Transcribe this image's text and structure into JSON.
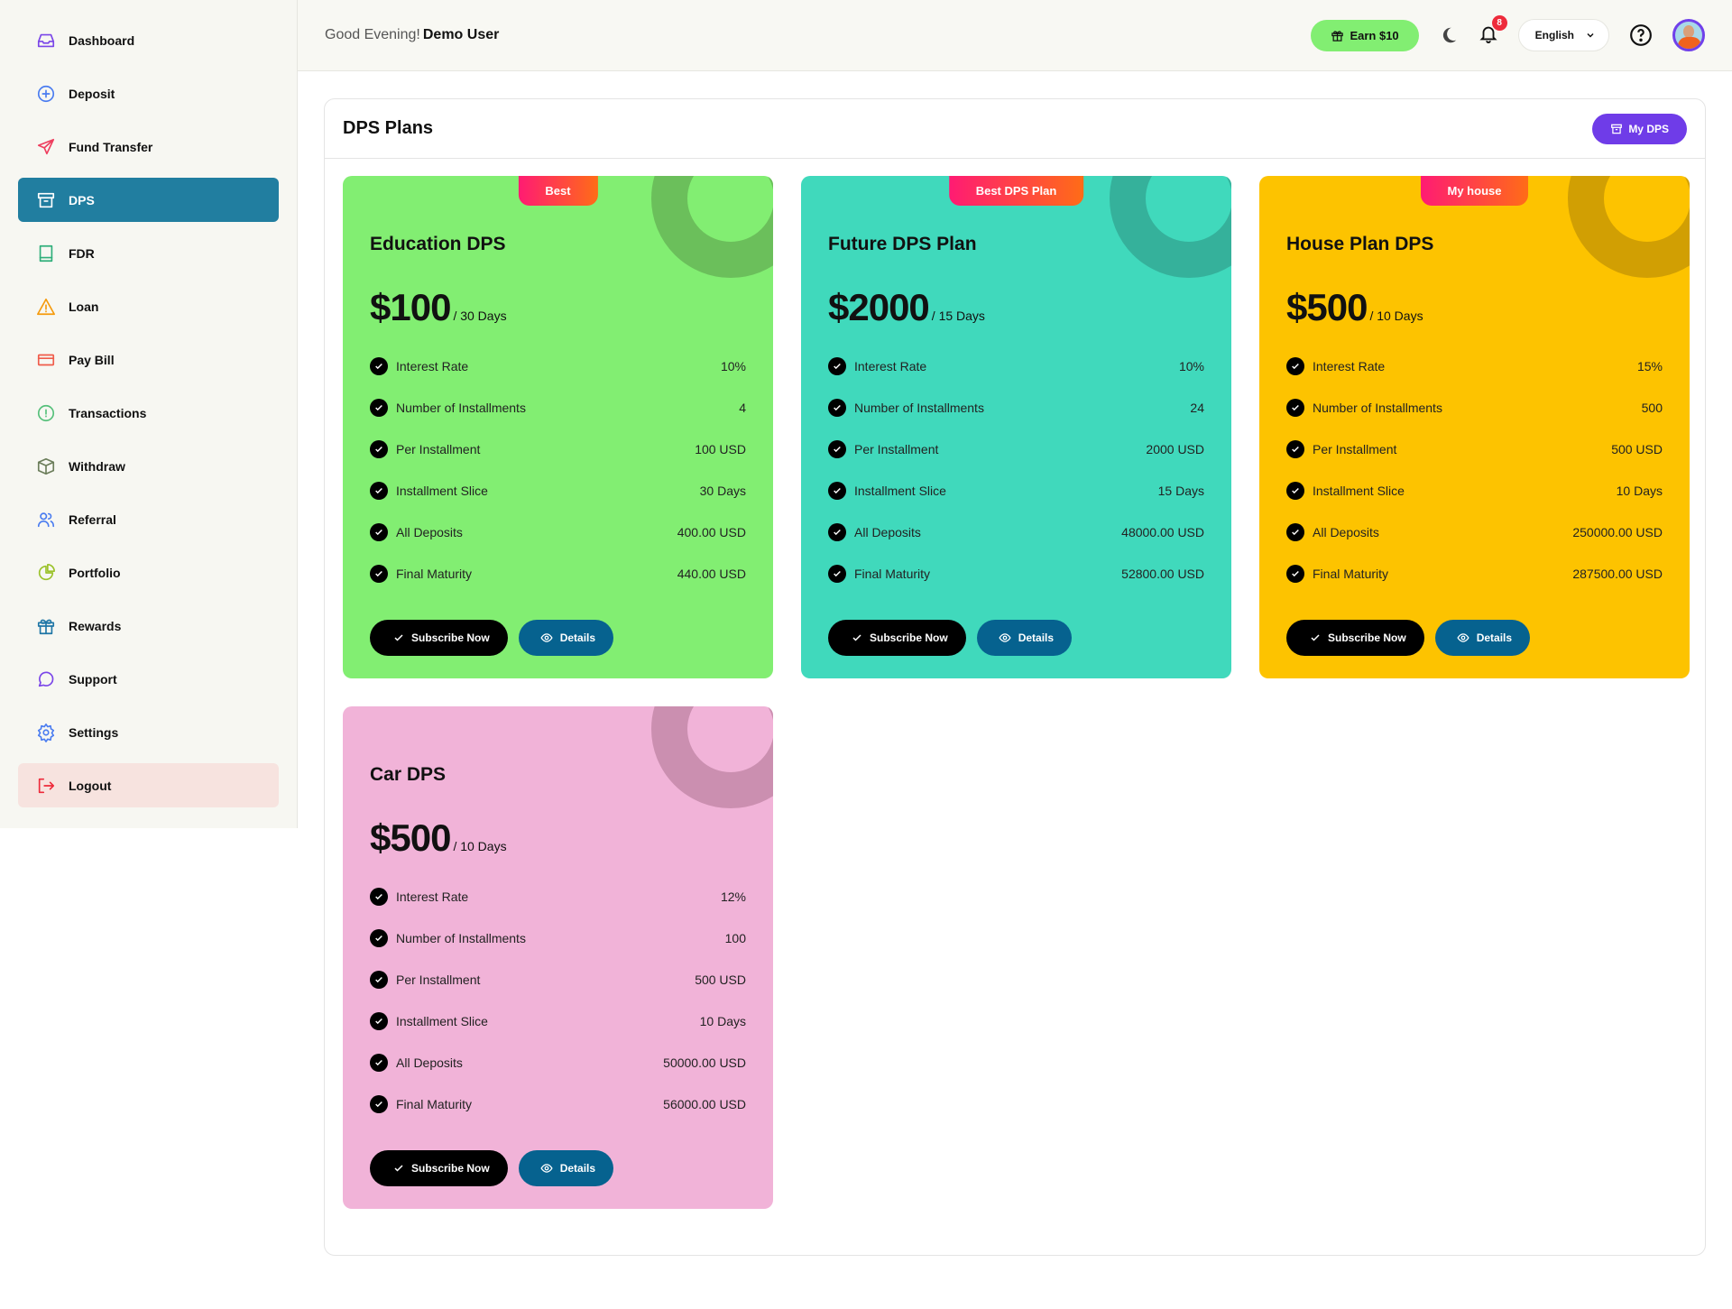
{
  "sidebar": {
    "items": [
      {
        "label": "Dashboard",
        "icon": "inbox-icon",
        "color": "#7a45e8"
      },
      {
        "label": "Deposit",
        "icon": "plus-circle-icon",
        "color": "#4a7cf0"
      },
      {
        "label": "Fund Transfer",
        "icon": "send-icon",
        "color": "#ee3e5e"
      },
      {
        "label": "DPS",
        "icon": "archive-icon",
        "color": "#ffffff",
        "active": true
      },
      {
        "label": "FDR",
        "icon": "book-icon",
        "color": "#2fae7a"
      },
      {
        "label": "Loan",
        "icon": "warning-icon",
        "color": "#f59a0c"
      },
      {
        "label": "Pay Bill",
        "icon": "credit-card-icon",
        "color": "#f05b4a"
      },
      {
        "label": "Transactions",
        "icon": "alert-circle-icon",
        "color": "#55c07a"
      },
      {
        "label": "Withdraw",
        "icon": "box-icon",
        "color": "#6b7d5a"
      },
      {
        "label": "Referral",
        "icon": "users-icon",
        "color": "#4a7cf0"
      },
      {
        "label": "Portfolio",
        "icon": "pie-chart-icon",
        "color": "#9bc22a"
      },
      {
        "label": "Rewards",
        "icon": "gift-icon",
        "color": "#1f76a6"
      },
      {
        "label": "Support",
        "icon": "message-icon",
        "color": "#7a45e8"
      },
      {
        "label": "Settings",
        "icon": "gear-icon",
        "color": "#4a7cf0"
      },
      {
        "label": "Logout",
        "icon": "logout-icon",
        "color": "#ee2b3b",
        "logout": true
      }
    ]
  },
  "header": {
    "greeting": "Good Evening!",
    "user": "Demo User",
    "earn_label": "Earn $10",
    "notifications": "8",
    "language": "English"
  },
  "panel": {
    "title": "DPS Plans",
    "my_dps_label": "My DPS"
  },
  "plans": [
    {
      "ribbon": "Best",
      "title": "Education DPS",
      "amount": "$100",
      "period": "/ 30 Days",
      "bg": "#82ee72",
      "ring": "#6bbf5b",
      "rows": [
        [
          "Interest Rate",
          "10%"
        ],
        [
          "Number of Installments",
          "4"
        ],
        [
          "Per Installment",
          "100 USD"
        ],
        [
          "Installment Slice",
          "30 Days"
        ],
        [
          "All Deposits",
          "400.00 USD"
        ],
        [
          "Final Maturity",
          "440.00 USD"
        ]
      ]
    },
    {
      "ribbon": "Best DPS Plan",
      "title": "Future DPS Plan",
      "amount": "$2000",
      "period": "/ 15 Days",
      "bg": "#40d9bc",
      "ring": "#35b19b",
      "rows": [
        [
          "Interest Rate",
          "10%"
        ],
        [
          "Number of Installments",
          "24"
        ],
        [
          "Per Installment",
          "2000 USD"
        ],
        [
          "Installment Slice",
          "15 Days"
        ],
        [
          "All Deposits",
          "48000.00 USD"
        ],
        [
          "Final Maturity",
          "52800.00 USD"
        ]
      ]
    },
    {
      "ribbon": "My house",
      "title": "House Plan DPS",
      "amount": "$500",
      "period": "/ 10 Days",
      "bg": "#fdc300",
      "ring": "#d19f03",
      "rows": [
        [
          "Interest Rate",
          "15%"
        ],
        [
          "Number of Installments",
          "500"
        ],
        [
          "Per Installment",
          "500 USD"
        ],
        [
          "Installment Slice",
          "10 Days"
        ],
        [
          "All Deposits",
          "250000.00 USD"
        ],
        [
          "Final Maturity",
          "287500.00 USD"
        ]
      ]
    },
    {
      "ribbon": "",
      "title": "Car DPS",
      "amount": "$500",
      "period": "/ 10 Days",
      "bg": "#f1b3d8",
      "ring": "#cb8fb0",
      "rows": [
        [
          "Interest Rate",
          "12%"
        ],
        [
          "Number of Installments",
          "100"
        ],
        [
          "Per Installment",
          "500 USD"
        ],
        [
          "Installment Slice",
          "10 Days"
        ],
        [
          "All Deposits",
          "50000.00 USD"
        ],
        [
          "Final Maturity",
          "56000.00 USD"
        ]
      ]
    }
  ],
  "buttons": {
    "subscribe": "Subscribe Now",
    "details": "Details"
  }
}
